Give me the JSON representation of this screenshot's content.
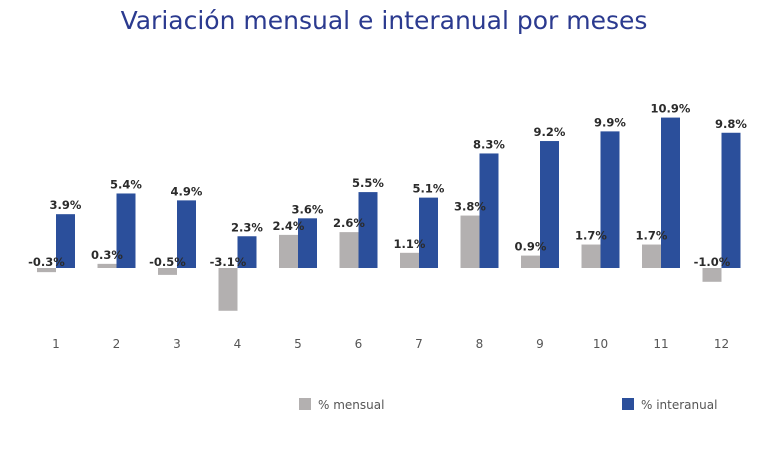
{
  "chart_data": {
    "type": "bar",
    "title": "Variación mensual e interanual por meses",
    "xlabel": "",
    "ylabel": "",
    "categories": [
      "1",
      "2",
      "3",
      "4",
      "5",
      "6",
      "7",
      "8",
      "9",
      "10",
      "11",
      "12"
    ],
    "series": [
      {
        "name": "% mensual",
        "color": "#b3b0b0",
        "values": [
          -0.3,
          0.3,
          -0.5,
          -3.1,
          2.4,
          2.6,
          1.1,
          3.8,
          0.9,
          1.7,
          1.7,
          -1.0
        ],
        "labels": [
          "-0.3%",
          "0.3%",
          "-0.5%",
          "-3.1%",
          "2.4%",
          "2.6%",
          "1.1%",
          "3.8%",
          "0.9%",
          "1.7%",
          "1.7%",
          "-1.0%"
        ]
      },
      {
        "name": "% interanual",
        "color": "#2b4f9b",
        "values": [
          3.9,
          5.4,
          4.9,
          2.3,
          3.6,
          5.5,
          5.1,
          8.3,
          9.2,
          9.9,
          10.9,
          9.8
        ],
        "labels": [
          "3.9%",
          "5.4%",
          "4.9%",
          "2.3%",
          "3.6%",
          "5.5%",
          "5.1%",
          "8.3%",
          "9.2%",
          "9.9%",
          "10.9%",
          "9.8%"
        ]
      }
    ],
    "ylim": [
      -3.5,
      11.5
    ],
    "grid": false,
    "legend_position": "bottom"
  }
}
